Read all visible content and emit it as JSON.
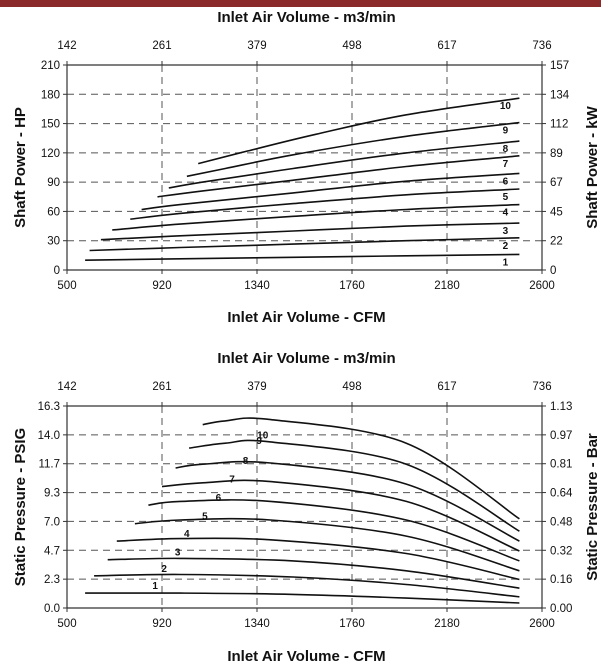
{
  "colors": {
    "banner": "#8b2a2a",
    "curve": "#111111",
    "grid": "#555555"
  },
  "chart_data": [
    {
      "type": "line",
      "title": "Inlet Air Volume - m3/min",
      "xlabel": "Inlet Air Volume - CFM",
      "ylabel": "Shaft Power - HP",
      "y2label": "Shaft Power - kW",
      "xlim": [
        500,
        2600
      ],
      "ylim": [
        0,
        210
      ],
      "x_ticks": [
        "500",
        "920",
        "1340",
        "1760",
        "2180",
        "2600"
      ],
      "y_ticks": [
        "0",
        "30",
        "60",
        "90",
        "120",
        "150",
        "180",
        "210"
      ],
      "top_ticks": [
        "142",
        "261",
        "379",
        "498",
        "617",
        "736"
      ],
      "right_ticks": [
        "0",
        "22",
        "45",
        "67",
        "89",
        "112",
        "134",
        "157"
      ],
      "grid": "dashed",
      "series": [
        {
          "name": "1",
          "x": [
            580,
            1000,
            1500,
            2000,
            2500
          ],
          "y": [
            10,
            11.5,
            13,
            14.5,
            16
          ]
        },
        {
          "name": "2",
          "x": [
            600,
            1000,
            1500,
            2000,
            2500
          ],
          "y": [
            20,
            23,
            26.5,
            30,
            33
          ]
        },
        {
          "name": "3",
          "x": [
            650,
            1000,
            1500,
            2000,
            2500
          ],
          "y": [
            31,
            35,
            40,
            45,
            48
          ]
        },
        {
          "name": "4",
          "x": [
            700,
            1000,
            1500,
            2000,
            2500
          ],
          "y": [
            41,
            47,
            55,
            62,
            67
          ]
        },
        {
          "name": "5",
          "x": [
            780,
            1000,
            1500,
            2000,
            2500
          ],
          "y": [
            52,
            58,
            68,
            77,
            83
          ]
        },
        {
          "name": "6",
          "x": [
            830,
            1000,
            1500,
            2000,
            2500
          ],
          "y": [
            62,
            67,
            79,
            91,
            99
          ]
        },
        {
          "name": "7",
          "x": [
            900,
            1100,
            1500,
            2000,
            2500
          ],
          "y": [
            75,
            81,
            92,
            106,
            117
          ]
        },
        {
          "name": "8",
          "x": [
            950,
            1100,
            1500,
            2000,
            2500
          ],
          "y": [
            84,
            90,
            104,
            120,
            132
          ]
        },
        {
          "name": "9",
          "x": [
            1030,
            1200,
            1500,
            2000,
            2500
          ],
          "y": [
            96,
            104,
            118,
            137,
            151
          ]
        },
        {
          "name": "10",
          "x": [
            1080,
            1300,
            1600,
            2000,
            2500
          ],
          "y": [
            109,
            122,
            139,
            159,
            176
          ]
        }
      ]
    },
    {
      "type": "line",
      "title": "Inlet Air Volume - m3/min",
      "xlabel": "Inlet Air Volume - CFM",
      "ylabel": "Static Pressure - PSIG",
      "y2label": "Static Pressure - Bar",
      "xlim": [
        500,
        2600
      ],
      "ylim": [
        0,
        16.3
      ],
      "x_ticks": [
        "500",
        "920",
        "1340",
        "1760",
        "2180",
        "2600"
      ],
      "y_ticks": [
        "0.0",
        "2.3",
        "4.7",
        "7.0",
        "9.3",
        "11.7",
        "14.0",
        "16.3"
      ],
      "y_tick_values": [
        0,
        2.3,
        4.7,
        7.0,
        9.3,
        11.7,
        14.0,
        16.3
      ],
      "top_ticks": [
        "142",
        "261",
        "379",
        "498",
        "617",
        "736"
      ],
      "right_ticks": [
        "0.00",
        "0.16",
        "0.32",
        "0.48",
        "0.64",
        "0.81",
        "0.97",
        "1.13"
      ],
      "grid": "dashed",
      "series": [
        {
          "name": "1",
          "x": [
            580,
            1000,
            1500,
            2000,
            2500
          ],
          "y": [
            1.2,
            1.2,
            1.1,
            0.8,
            0.4
          ]
        },
        {
          "name": "2",
          "x": [
            620,
            1000,
            1500,
            2000,
            2500
          ],
          "y": [
            2.6,
            2.7,
            2.5,
            1.9,
            0.9
          ]
        },
        {
          "name": "3",
          "x": [
            680,
            1000,
            1500,
            2000,
            2500
          ],
          "y": [
            3.9,
            4.0,
            3.8,
            3.0,
            1.6
          ]
        },
        {
          "name": "4",
          "x": [
            720,
            1000,
            1400,
            2000,
            2500
          ],
          "y": [
            5.4,
            5.6,
            5.5,
            4.4,
            2.3
          ]
        },
        {
          "name": "5",
          "x": [
            800,
            1000,
            1400,
            2000,
            2500
          ],
          "y": [
            6.8,
            7.1,
            7.1,
            5.8,
            3.0
          ]
        },
        {
          "name": "6",
          "x": [
            860,
            1000,
            1400,
            2000,
            2500
          ],
          "y": [
            8.3,
            8.6,
            8.6,
            7.1,
            3.8
          ]
        },
        {
          "name": "7",
          "x": [
            920,
            1100,
            1400,
            2000,
            2500
          ],
          "y": [
            9.8,
            10.1,
            10.2,
            8.6,
            4.6
          ]
        },
        {
          "name": "8",
          "x": [
            980,
            1100,
            1400,
            2000,
            2500
          ],
          "y": [
            11.3,
            11.6,
            11.7,
            10.0,
            5.4
          ]
        },
        {
          "name": "9",
          "x": [
            1040,
            1200,
            1400,
            2000,
            2500
          ],
          "y": [
            12.9,
            13.3,
            13.4,
            11.6,
            6.2
          ]
        },
        {
          "name": "10",
          "x": [
            1100,
            1200,
            1400,
            2000,
            2500
          ],
          "y": [
            14.8,
            15.1,
            15.2,
            13.3,
            7.2
          ]
        }
      ]
    }
  ]
}
